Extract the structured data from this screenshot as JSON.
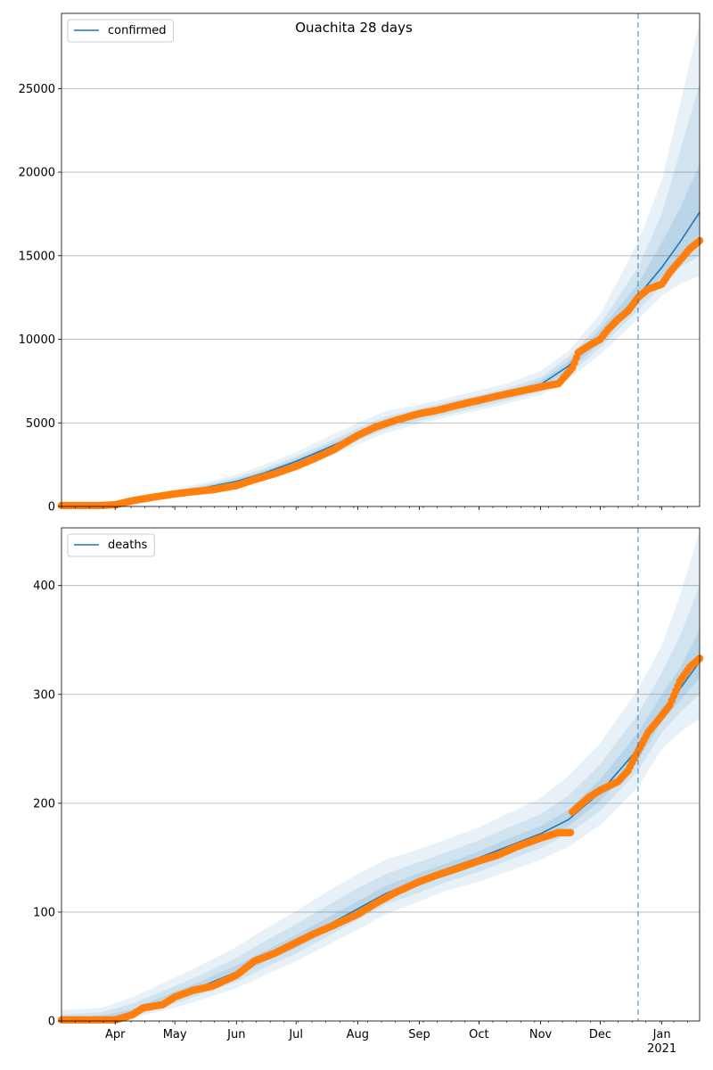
{
  "figure_title": "Ouachita 28 days",
  "colors": {
    "line": "#1f77b4",
    "band": "#1f77b4",
    "points": "#ff7f0e",
    "grid": "#b0b0b0",
    "forecast_marker": "#1f77b4"
  },
  "chart_data": [
    {
      "type": "line",
      "legend": "confirmed",
      "legend_position": "top-left",
      "grid": "y",
      "x_axis_type": "date",
      "xlim": [
        "2020-03-05",
        "2021-01-20"
      ],
      "ylim": [
        0,
        29500
      ],
      "y_ticks": [
        0,
        5000,
        10000,
        15000,
        20000,
        25000
      ],
      "x_ticks": [
        "2020-04-01",
        "2020-05-01",
        "2020-06-01",
        "2020-07-01",
        "2020-08-01",
        "2020-09-01",
        "2020-10-01",
        "2020-11-01",
        "2020-12-01",
        "2021-01-01"
      ],
      "x_tick_labels": [
        "Apr",
        "May",
        "Jun",
        "Jul",
        "Aug",
        "Sep",
        "Oct",
        "Nov",
        "Dec",
        "Jan\n2021"
      ],
      "forecast_start": "2020-12-20",
      "model": {
        "x": [
          "2020-03-05",
          "2020-03-25",
          "2020-04-15",
          "2020-05-01",
          "2020-05-15",
          "2020-06-01",
          "2020-06-15",
          "2020-07-01",
          "2020-07-15",
          "2020-08-01",
          "2020-08-15",
          "2020-09-01",
          "2020-09-15",
          "2020-10-01",
          "2020-10-15",
          "2020-11-01",
          "2020-11-15",
          "2020-12-01",
          "2020-12-20",
          "2021-01-01",
          "2021-01-10",
          "2021-01-20"
        ],
        "median": [
          0,
          50,
          350,
          800,
          1100,
          1500,
          2000,
          2700,
          3400,
          4300,
          5000,
          5500,
          5900,
          6300,
          6700,
          7300,
          8400,
          10200,
          12600,
          14300,
          15800,
          17600
        ],
        "bands": [
          {
            "lower": [
              0,
              0,
              200,
              600,
              850,
              1150,
              1550,
              2200,
              2850,
              3700,
              4400,
              4950,
              5350,
              5750,
              6150,
              6650,
              7600,
              9100,
              11200,
              12600,
              13300,
              13800
            ],
            "upper": [
              20,
              130,
              500,
              1050,
              1400,
              1900,
              2500,
              3250,
              4050,
              5000,
              5700,
              6100,
              6500,
              6950,
              7350,
              8100,
              9300,
              11500,
              15800,
              19500,
              24000,
              29000
            ]
          },
          {
            "lower": [
              0,
              10,
              250,
              650,
              930,
              1270,
              1720,
              2400,
              3070,
              3920,
              4620,
              5130,
              5530,
              5930,
              6330,
              6870,
              7850,
              9500,
              11750,
              13200,
              14300,
              15000
            ],
            "upper": [
              10,
              90,
              450,
              950,
              1270,
              1730,
              2280,
              3000,
              3730,
              4680,
              5380,
              5870,
              6270,
              6670,
              7070,
              7730,
              8950,
              10900,
              14300,
              17500,
              21200,
              25300
            ]
          },
          {
            "lower": [
              0,
              25,
              300,
              720,
              1010,
              1380,
              1860,
              2550,
              3240,
              4100,
              4800,
              5310,
              5710,
              6110,
              6510,
              7070,
              8120,
              9800,
              12150,
              13750,
              15000,
              16300
            ],
            "upper": [
              5,
              70,
              400,
              880,
              1190,
              1620,
              2140,
              2850,
              3560,
              4500,
              5200,
              5690,
              6090,
              6490,
              6890,
              7530,
              8680,
              10600,
              13300,
              15800,
              17800,
              20500
            ]
          }
        ]
      },
      "observed": {
        "x": [
          "2020-03-05",
          "2020-03-15",
          "2020-03-25",
          "2020-04-01",
          "2020-04-10",
          "2020-04-20",
          "2020-05-01",
          "2020-05-10",
          "2020-05-20",
          "2020-06-01",
          "2020-06-10",
          "2020-06-20",
          "2020-07-01",
          "2020-07-10",
          "2020-07-20",
          "2020-08-01",
          "2020-08-10",
          "2020-08-20",
          "2020-09-01",
          "2020-09-10",
          "2020-09-20",
          "2020-10-01",
          "2020-10-10",
          "2020-10-20",
          "2020-11-01",
          "2020-11-10",
          "2020-11-17",
          "2020-11-20",
          "2020-11-25",
          "2020-12-01",
          "2020-12-05",
          "2020-12-10",
          "2020-12-15",
          "2020-12-20",
          "2020-12-25",
          "2021-01-01",
          "2021-01-05",
          "2021-01-10",
          "2021-01-15",
          "2021-01-20"
        ],
        "y": [
          60,
          60,
          60,
          100,
          350,
          550,
          750,
          880,
          1000,
          1250,
          1600,
          1950,
          2400,
          2850,
          3400,
          4250,
          4750,
          5150,
          5550,
          5750,
          6050,
          6350,
          6600,
          6850,
          7150,
          7350,
          8300,
          9200,
          9600,
          10000,
          10600,
          11200,
          11700,
          12500,
          13000,
          13300,
          14000,
          14700,
          15400,
          15900
        ]
      }
    },
    {
      "type": "line",
      "legend": "deaths",
      "legend_position": "top-left",
      "grid": "y",
      "x_axis_type": "date",
      "xlim": [
        "2020-03-05",
        "2021-01-20"
      ],
      "ylim": [
        0,
        453
      ],
      "y_ticks": [
        0,
        100,
        200,
        300,
        400
      ],
      "x_ticks": [
        "2020-04-01",
        "2020-05-01",
        "2020-06-01",
        "2020-07-01",
        "2020-08-01",
        "2020-09-01",
        "2020-10-01",
        "2020-11-01",
        "2020-12-01",
        "2021-01-01"
      ],
      "x_tick_labels": [
        "Apr",
        "May",
        "Jun",
        "Jul",
        "Aug",
        "Sep",
        "Oct",
        "Nov",
        "Dec",
        "Jan\n2021"
      ],
      "forecast_start": "2020-12-20",
      "model": {
        "x": [
          "2020-03-05",
          "2020-03-25",
          "2020-04-10",
          "2020-05-01",
          "2020-05-15",
          "2020-06-01",
          "2020-06-15",
          "2020-07-01",
          "2020-07-15",
          "2020-08-01",
          "2020-08-15",
          "2020-09-01",
          "2020-09-15",
          "2020-10-01",
          "2020-10-15",
          "2020-11-01",
          "2020-11-15",
          "2020-12-01",
          "2020-12-20",
          "2021-01-01",
          "2021-01-10",
          "2021-01-20"
        ],
        "median": [
          0,
          1,
          7,
          22,
          32,
          45,
          58,
          72,
          86,
          103,
          117,
          130,
          140,
          150,
          160,
          172,
          185,
          210,
          250,
          285,
          305,
          330
        ],
        "bands": [
          {
            "lower": [
              0,
              0,
              3,
              12,
              20,
              30,
              42,
              55,
              68,
              84,
              98,
              110,
              120,
              128,
              137,
              148,
              160,
              180,
              215,
              250,
              265,
              278
            ],
            "upper": [
              10,
              12,
              22,
              40,
              52,
              68,
              84,
              101,
              117,
              135,
              148,
              158,
              167,
              178,
              190,
              205,
              225,
              255,
              305,
              345,
              390,
              450
            ]
          },
          {
            "lower": [
              0,
              0,
              4,
              16,
              25,
              36,
              49,
              62,
              76,
              93,
              107,
              118,
              128,
              137,
              147,
              159,
              172,
              193,
              230,
              265,
              283,
              300
            ],
            "upper": [
              6,
              8,
              16,
              32,
              43,
              58,
              73,
              89,
              104,
              122,
              135,
              146,
              155,
              166,
              177,
              190,
              207,
              236,
              282,
              320,
              353,
              400
            ]
          },
          {
            "lower": [
              0,
              1,
              5,
              19,
              29,
              41,
              54,
              67,
              81,
              98,
              112,
              124,
              134,
              144,
              154,
              166,
              179,
              202,
              240,
              275,
              294,
              315
            ],
            "upper": [
              3,
              5,
              11,
              27,
              37,
              51,
              64,
              79,
              93,
              110,
              124,
              136,
              145,
              156,
              167,
              179,
              194,
              222,
              265,
              300,
              324,
              360
            ]
          }
        ]
      },
      "observed": {
        "x": [
          "2020-03-05",
          "2020-03-20",
          "2020-04-01",
          "2020-04-05",
          "2020-04-10",
          "2020-04-15",
          "2020-04-25",
          "2020-05-01",
          "2020-05-10",
          "2020-05-20",
          "2020-06-01",
          "2020-06-10",
          "2020-06-20",
          "2020-07-01",
          "2020-07-10",
          "2020-07-20",
          "2020-08-01",
          "2020-08-10",
          "2020-08-20",
          "2020-09-01",
          "2020-09-10",
          "2020-09-20",
          "2020-10-01",
          "2020-10-10",
          "2020-10-20",
          "2020-11-01",
          "2020-11-10",
          "2020-11-16",
          "2020-11-17",
          "2020-11-25",
          "2020-12-01",
          "2020-12-10",
          "2020-12-15",
          "2020-12-20",
          "2020-12-25",
          "2020-12-30",
          "2021-01-05",
          "2021-01-10",
          "2021-01-15",
          "2021-01-20"
        ],
        "y": [
          1,
          1,
          1,
          3,
          6,
          12,
          15,
          22,
          28,
          32,
          42,
          55,
          62,
          72,
          80,
          88,
          98,
          108,
          118,
          128,
          134,
          140,
          147,
          152,
          160,
          168,
          173,
          173,
          192,
          205,
          212,
          220,
          230,
          248,
          265,
          276,
          290,
          312,
          325,
          333
        ]
      }
    }
  ]
}
